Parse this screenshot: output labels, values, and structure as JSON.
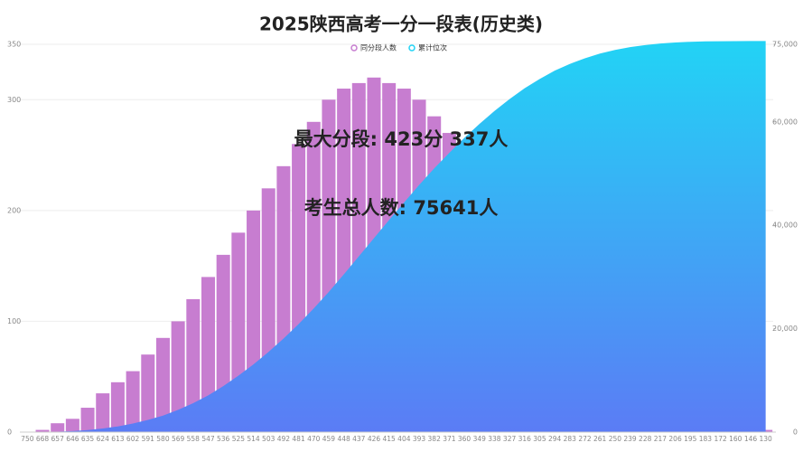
{
  "chart_data": {
    "type": "bar",
    "title": "2025陕西高考一分一段表(历史类)",
    "categories": [
      "750",
      "668",
      "657",
      "646",
      "635",
      "624",
      "613",
      "602",
      "591",
      "580",
      "569",
      "558",
      "547",
      "536",
      "525",
      "514",
      "503",
      "492",
      "481",
      "470",
      "459",
      "448",
      "437",
      "426",
      "415",
      "404",
      "393",
      "382",
      "371",
      "360",
      "349",
      "338",
      "327",
      "316",
      "305",
      "294",
      "283",
      "272",
      "261",
      "250",
      "239",
      "228",
      "217",
      "206",
      "195",
      "183",
      "172",
      "160",
      "146",
      "130"
    ],
    "series": [
      {
        "name": "同分段人数",
        "type": "bar",
        "color": "#c77dd0",
        "values": [
          0,
          2,
          8,
          12,
          22,
          35,
          45,
          55,
          70,
          85,
          100,
          120,
          140,
          160,
          180,
          200,
          220,
          240,
          260,
          280,
          300,
          310,
          315,
          320,
          315,
          310,
          300,
          285,
          270,
          255,
          240,
          225,
          210,
          190,
          170,
          150,
          130,
          110,
          90,
          75,
          60,
          45,
          35,
          25,
          18,
          12,
          8,
          5,
          3,
          2
        ]
      },
      {
        "name": "累计位次",
        "type": "area",
        "axis": "y2",
        "color": "#22d3f5",
        "values": [
          0,
          20,
          80,
          200,
          400,
          700,
          1100,
          1650,
          2350,
          3200,
          4300,
          5600,
          7100,
          8900,
          10900,
          13100,
          15500,
          18100,
          20900,
          23900,
          27100,
          30500,
          34000,
          37500,
          41000,
          44400,
          47800,
          51000,
          54000,
          56900,
          59600,
          62100,
          64400,
          66500,
          68300,
          69900,
          71200,
          72300,
          73200,
          73900,
          74450,
          74850,
          75150,
          75350,
          75480,
          75560,
          75600,
          75620,
          75635,
          75641
        ]
      }
    ],
    "ylim": [
      0,
      350
    ],
    "yticks": [
      0,
      100,
      200,
      300,
      350
    ],
    "y2lim": [
      0,
      75000
    ],
    "y2ticks": [
      0,
      {
        "value": 20000,
        "label": "20,000"
      },
      {
        "value": 40000,
        "label": "40,000"
      },
      {
        "value": 60000,
        "label": "60,000"
      },
      {
        "value": 75000,
        "label": "75,000"
      }
    ],
    "grid": true,
    "annotations": [
      "最大分段: 423分 337人",
      "考生总人数: 75641人"
    ]
  }
}
